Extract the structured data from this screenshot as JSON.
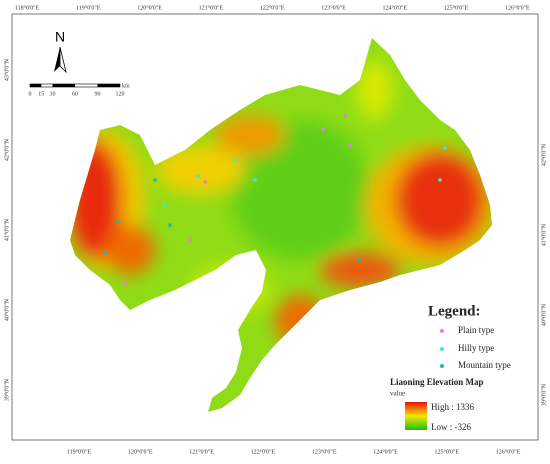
{
  "map": {
    "lon_labels_top": [
      "118°0'0\"E",
      "119°0'0\"E",
      "120°0'0\"E",
      "121°0'0\"E",
      "122°0'0\"E",
      "123°0'0\"E",
      "124°0'0\"E",
      "125°0'0\"E",
      "126°0'0\"E"
    ],
    "lon_labels_bottom": [
      "119°0'0\"E",
      "120°0'0\"E",
      "121°0'0\"E",
      "122°0'0\"E",
      "123°0'0\"E",
      "124°0'0\"E",
      "125°0'0\"E",
      "126°0'0\"E"
    ],
    "lat_labels_left": [
      "43°0'0\"N",
      "42°0'0\"N",
      "41°0'0\"N",
      "40°0'0\"N",
      "39°0'0\"N"
    ],
    "lat_labels_right": [
      "42°0'0\"N",
      "41°0'0\"N",
      "40°0'0\"N",
      "39°0'0\"N"
    ],
    "north": "N",
    "scale": {
      "ticks": [
        0,
        15,
        30,
        60,
        90,
        120
      ],
      "unit": "km"
    },
    "legend": {
      "title": "Legend:",
      "items": [
        "Plain type",
        "Hilly type",
        "Mountain type"
      ],
      "elevation_title": "Liaoning Elevation Map",
      "elevation_subtitle": "value",
      "high": "High : 1336",
      "low": "Low : -326"
    }
  }
}
